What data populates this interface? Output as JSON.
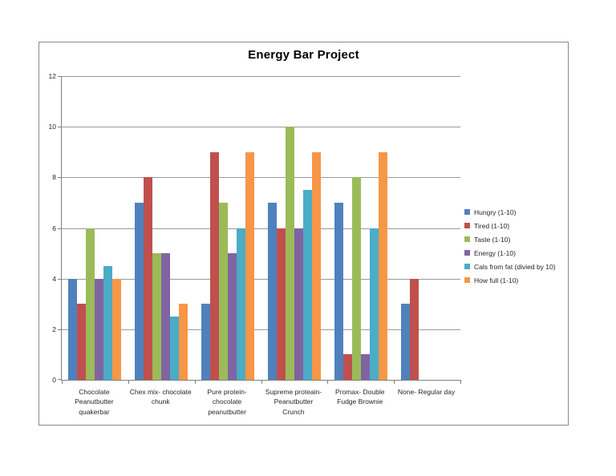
{
  "chart_data": {
    "type": "bar",
    "title": "Energy Bar Project",
    "categories": [
      "Chocolate\nPeanutbutter\nquakerbar",
      "Chex mix- chocolate\nchunk",
      "Pure protein-\nchocolate\npeanutbutter",
      "Supreme proteain-\nPeanutbutter\nCrunch",
      "Promax- Double\nFudge Brownie",
      "None- Regular day"
    ],
    "series": [
      {
        "name": "Hungry (1-10)",
        "color": "#4F81BD",
        "values": [
          4,
          7,
          3,
          7,
          7,
          3
        ]
      },
      {
        "name": "Tired (1-10)",
        "color": "#C0504D",
        "values": [
          3,
          8,
          9,
          6,
          1,
          4
        ]
      },
      {
        "name": "Taste (1-10)",
        "color": "#9BBB59",
        "values": [
          6,
          5,
          7,
          10,
          8,
          0
        ]
      },
      {
        "name": "Energy (1-10)",
        "color": "#8064A2",
        "values": [
          4,
          5,
          5,
          6,
          1,
          0
        ]
      },
      {
        "name": "Cals from fat (divied by 10)",
        "color": "#4BACC6",
        "values": [
          4.5,
          2.5,
          6,
          7.5,
          6,
          0
        ]
      },
      {
        "name": "How full (1-10)",
        "color": "#F79646",
        "values": [
          4,
          3,
          9,
          9,
          9,
          0
        ]
      }
    ],
    "y_ticks": [
      0,
      2,
      4,
      6,
      8,
      10,
      12
    ],
    "ylim": [
      0,
      12
    ],
    "xlabel": "",
    "ylabel": "",
    "grid": true,
    "legend_position": "right",
    "colors": {
      "gridline": "#9a9a9a",
      "axis": "#7f7f7f",
      "frame_border": "#898989",
      "text": "#262626",
      "title": "#000000"
    }
  }
}
